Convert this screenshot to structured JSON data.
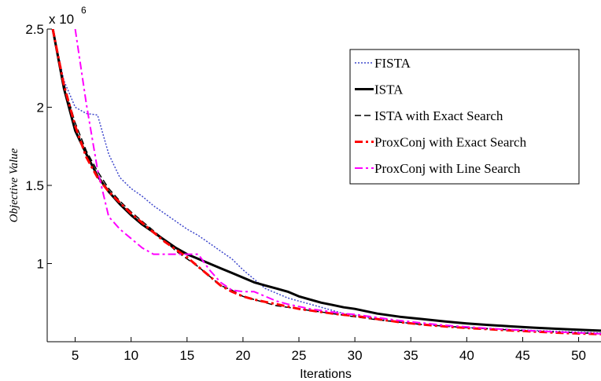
{
  "chart_data": {
    "type": "line",
    "xlabel": "Iterations",
    "ylabel": "Objective Value",
    "y_multiplier_base": "x 10",
    "y_multiplier_exp": "6",
    "xlim": [
      2.5,
      52
    ],
    "ylim": [
      0.5,
      2.5
    ],
    "x_ticks": [
      5,
      10,
      15,
      20,
      25,
      30,
      35,
      40,
      45,
      50
    ],
    "y_ticks": [
      1,
      1.5,
      2,
      2.5
    ],
    "y_tick_labels": [
      "1",
      "1.5",
      "2",
      "2.5"
    ],
    "grid": false,
    "legend_position": "top-right",
    "series": [
      {
        "name": "FISTA",
        "color": "#3f48cc",
        "dash": "2 2",
        "width": 1.5,
        "x": [
          3,
          4,
          5,
          6,
          7,
          8,
          9,
          10,
          11,
          12,
          13,
          14,
          15,
          16,
          17,
          18,
          19,
          20,
          21,
          22,
          23,
          24,
          25,
          26,
          27,
          28,
          29,
          30,
          32,
          34,
          36,
          38,
          40,
          42,
          44,
          46,
          48,
          50,
          52
        ],
        "y": [
          2.5,
          2.17,
          2.0,
          1.96,
          1.95,
          1.7,
          1.55,
          1.48,
          1.43,
          1.37,
          1.32,
          1.27,
          1.22,
          1.18,
          1.13,
          1.08,
          1.03,
          0.96,
          0.9,
          0.84,
          0.81,
          0.78,
          0.76,
          0.74,
          0.72,
          0.7,
          0.68,
          0.67,
          0.645,
          0.625,
          0.61,
          0.6,
          0.59,
          0.585,
          0.578,
          0.572,
          0.567,
          0.562,
          0.556
        ]
      },
      {
        "name": "ISTA",
        "color": "#000000",
        "dash": "",
        "width": 3,
        "x": [
          3,
          4,
          5,
          6,
          7,
          8,
          9,
          10,
          11,
          12,
          13,
          14,
          15,
          16,
          17,
          18,
          19,
          20,
          21,
          22,
          23,
          24,
          25,
          26,
          27,
          28,
          29,
          30,
          32,
          34,
          36,
          38,
          40,
          42,
          44,
          46,
          48,
          50,
          52
        ],
        "y": [
          2.5,
          2.12,
          1.85,
          1.7,
          1.56,
          1.46,
          1.38,
          1.31,
          1.25,
          1.2,
          1.15,
          1.1,
          1.06,
          1.03,
          1.0,
          0.97,
          0.94,
          0.91,
          0.88,
          0.86,
          0.84,
          0.82,
          0.79,
          0.77,
          0.75,
          0.735,
          0.72,
          0.71,
          0.68,
          0.66,
          0.645,
          0.63,
          0.617,
          0.607,
          0.598,
          0.59,
          0.583,
          0.577,
          0.571
        ]
      },
      {
        "name": "ISTA with Exact Search",
        "color": "#000000",
        "dash": "8 4",
        "width": 1.5,
        "x": [
          3,
          4,
          5,
          6,
          7,
          8,
          9,
          10,
          11,
          12,
          13,
          14,
          15,
          16,
          17,
          18,
          19,
          20,
          21,
          22,
          23,
          24,
          25,
          26,
          27,
          28,
          29,
          30,
          32,
          34,
          36,
          38,
          40,
          42,
          44,
          46,
          48,
          50,
          52
        ],
        "y": [
          2.5,
          2.15,
          1.9,
          1.72,
          1.59,
          1.48,
          1.4,
          1.33,
          1.27,
          1.21,
          1.15,
          1.08,
          1.03,
          0.98,
          0.92,
          0.86,
          0.83,
          0.79,
          0.77,
          0.75,
          0.73,
          0.72,
          0.71,
          0.7,
          0.69,
          0.68,
          0.67,
          0.66,
          0.64,
          0.625,
          0.61,
          0.6,
          0.59,
          0.582,
          0.575,
          0.568,
          0.562,
          0.557,
          0.552
        ]
      },
      {
        "name": "ProxConj with Exact Search",
        "color": "#ff0000",
        "dash": "10 4 3 4",
        "width": 3,
        "x": [
          3,
          4,
          5,
          6,
          7,
          8,
          9,
          10,
          11,
          12,
          13,
          14,
          15,
          16,
          17,
          18,
          19,
          20,
          21,
          22,
          23,
          24,
          25,
          26,
          27,
          28,
          29,
          30,
          32,
          34,
          36,
          38,
          40,
          42,
          44,
          46,
          48,
          50,
          52
        ],
        "y": [
          2.5,
          2.14,
          1.88,
          1.68,
          1.55,
          1.46,
          1.39,
          1.32,
          1.26,
          1.2,
          1.14,
          1.09,
          1.04,
          0.98,
          0.92,
          0.86,
          0.82,
          0.79,
          0.77,
          0.755,
          0.74,
          0.725,
          0.71,
          0.7,
          0.69,
          0.68,
          0.672,
          0.665,
          0.645,
          0.625,
          0.61,
          0.598,
          0.588,
          0.58,
          0.572,
          0.565,
          0.558,
          0.553,
          0.548
        ]
      },
      {
        "name": "ProxConj with Line Search",
        "color": "#ff00ff",
        "dash": "10 4 3 4",
        "width": 2,
        "x": [
          5,
          6,
          7,
          8,
          9,
          10,
          11,
          12,
          13,
          14,
          15,
          16,
          17,
          18,
          19,
          20,
          21,
          22,
          23,
          24,
          25,
          26,
          27,
          28,
          29,
          30,
          32,
          34,
          36,
          38,
          40,
          42,
          44,
          46,
          48,
          50,
          52
        ],
        "y": [
          2.5,
          2.02,
          1.6,
          1.3,
          1.22,
          1.16,
          1.1,
          1.06,
          1.06,
          1.06,
          1.06,
          1.06,
          0.96,
          0.88,
          0.83,
          0.82,
          0.82,
          0.79,
          0.76,
          0.74,
          0.725,
          0.71,
          0.7,
          0.69,
          0.68,
          0.675,
          0.655,
          0.635,
          0.62,
          0.605,
          0.595,
          0.585,
          0.577,
          0.57,
          0.563,
          0.557,
          0.551
        ]
      }
    ]
  }
}
